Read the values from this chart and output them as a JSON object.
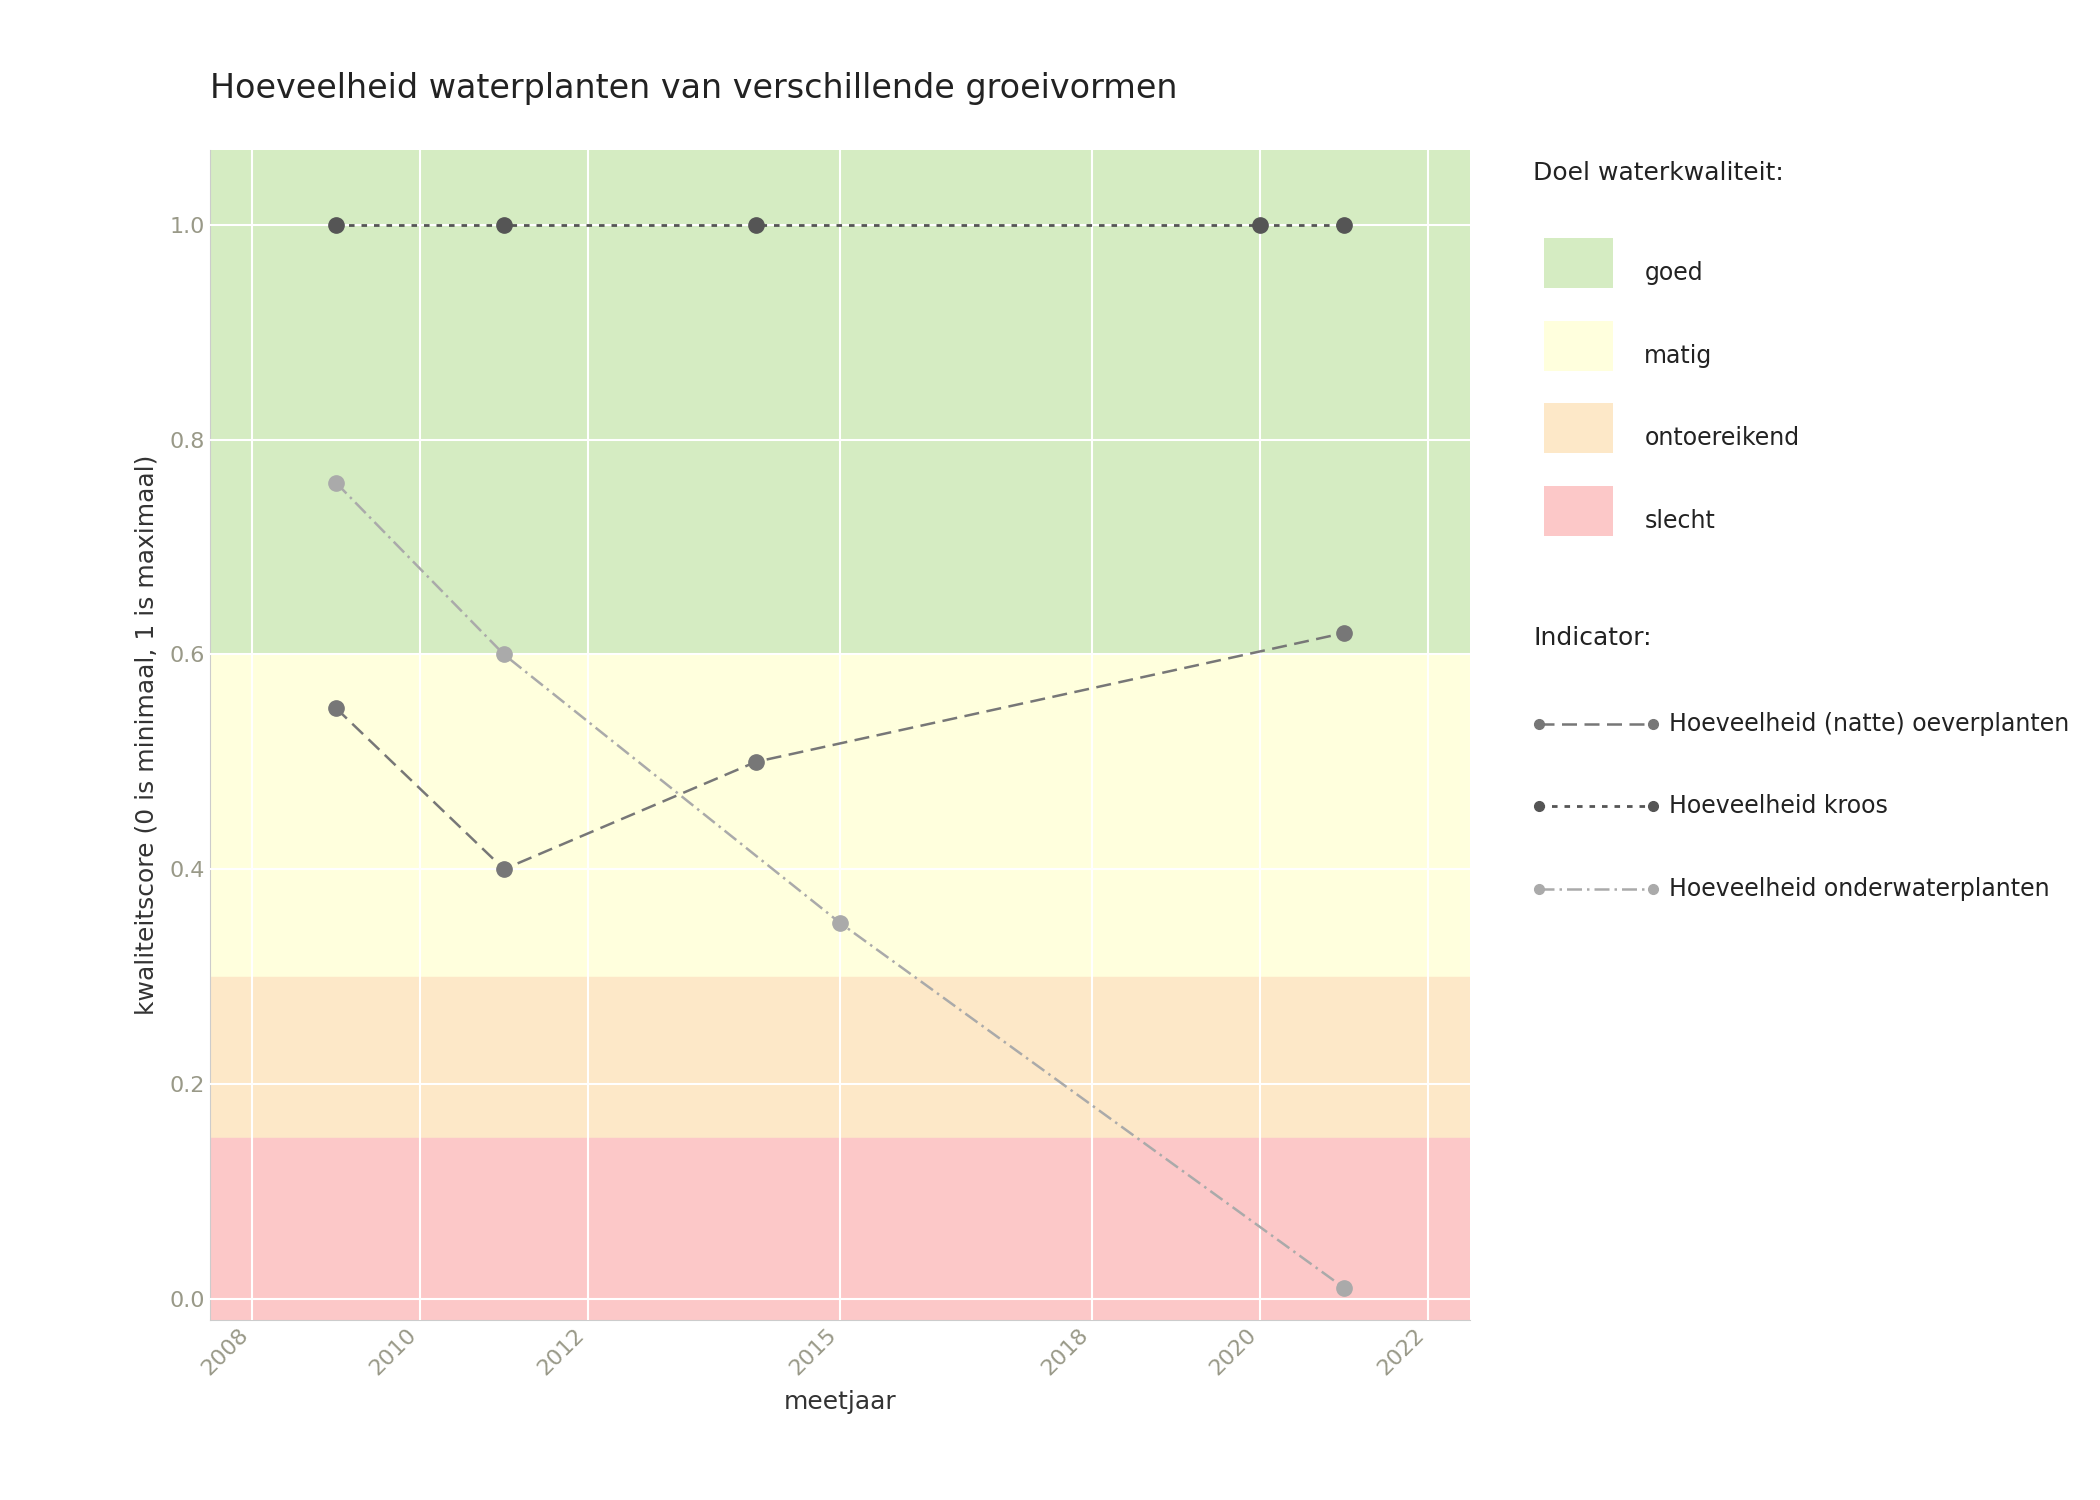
{
  "title": "Hoeveelheid waterplanten van verschillende groeivormen",
  "xlabel": "meetjaar",
  "ylabel": "kwaliteitscore (0 is minimaal, 1 is maximaal)",
  "xlim": [
    2007.5,
    2022.5
  ],
  "ylim": [
    -0.02,
    1.07
  ],
  "bg_colors": {
    "goed": {
      "ymin": 0.6,
      "ymax": 1.07,
      "color": "#d5ecc2"
    },
    "matig": {
      "ymin": 0.3,
      "ymax": 0.6,
      "color": "#ffffdd"
    },
    "ontoereikend": {
      "ymin": 0.15,
      "ymax": 0.3,
      "color": "#fde8c8"
    },
    "slecht": {
      "ymin": -0.02,
      "ymax": 0.15,
      "color": "#fcc8c8"
    }
  },
  "series_order": [
    "oeverplanten",
    "kroos",
    "onderwaterplanten"
  ],
  "series": {
    "kroos": {
      "label": "Hoeveelheid kroos",
      "x": [
        2009,
        2011,
        2014,
        2020,
        2021
      ],
      "y": [
        1.0,
        1.0,
        1.0,
        1.0,
        1.0
      ],
      "color": "#555555",
      "linestyle": "dotted",
      "linewidth": 2.0,
      "markersize": 11,
      "alpha": 1.0
    },
    "oeverplanten": {
      "label": "Hoeveelheid (natte) oeverplanten",
      "x": [
        2009,
        2011,
        2014,
        2021
      ],
      "y": [
        0.55,
        0.4,
        0.5,
        0.62
      ],
      "color": "#777777",
      "linestyle": "dashed",
      "linewidth": 1.8,
      "markersize": 11,
      "alpha": 1.0
    },
    "onderwaterplanten": {
      "label": "Hoeveelheid onderwaterplanten",
      "x": [
        2009,
        2011,
        2015,
        2021
      ],
      "y": [
        0.76,
        0.6,
        0.35,
        0.01
      ],
      "color": "#aaaaaa",
      "linestyle": "dashdot",
      "linewidth": 1.8,
      "markersize": 11,
      "alpha": 1.0
    }
  },
  "legend_quality_title": "Doel waterkwaliteit:",
  "legend_indicator_title": "Indicator:",
  "xticks": [
    2008,
    2010,
    2012,
    2015,
    2018,
    2020,
    2022
  ],
  "yticks": [
    0.0,
    0.2,
    0.4,
    0.6,
    0.8,
    1.0
  ],
  "fig_bg_color": "#ffffff",
  "tick_color": "#999988",
  "spine_color": "#cccccc",
  "grid_color": "#ffffff",
  "title_fontsize": 24,
  "label_fontsize": 18,
  "tick_fontsize": 16,
  "legend_title_fontsize": 18,
  "legend_fontsize": 17
}
